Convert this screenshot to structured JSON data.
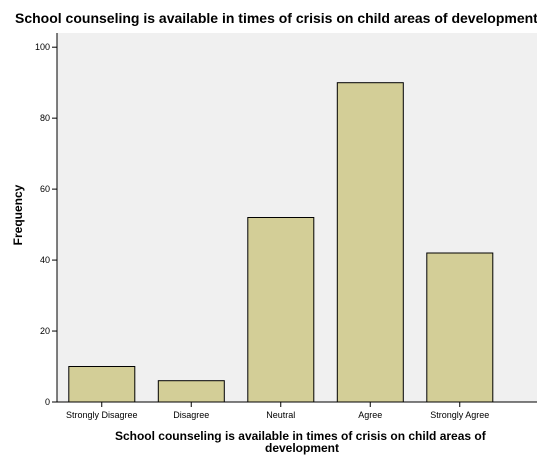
{
  "chart_data": {
    "type": "bar",
    "title": "School counseling is available in times of crisis on child areas of development",
    "xlabel": "School counseling is available in times of crisis on child areas of development",
    "xlabel_lines": [
      "School counseling is available in times of crisis on child areas of",
      "development"
    ],
    "ylabel": "Frequency",
    "categories": [
      "Strongly Disagree",
      "Disagree",
      "Neutral",
      "Agree",
      "Strongly Agree"
    ],
    "values": [
      10,
      6,
      52,
      90,
      42
    ],
    "ylim": [
      0,
      104
    ],
    "yticks": [
      0,
      20,
      40,
      60,
      80,
      100
    ],
    "grid": false,
    "colors": {
      "plot_background": "#f0f0f0",
      "bar_fill": "#d3ce97",
      "bar_stroke": "#000000"
    }
  }
}
